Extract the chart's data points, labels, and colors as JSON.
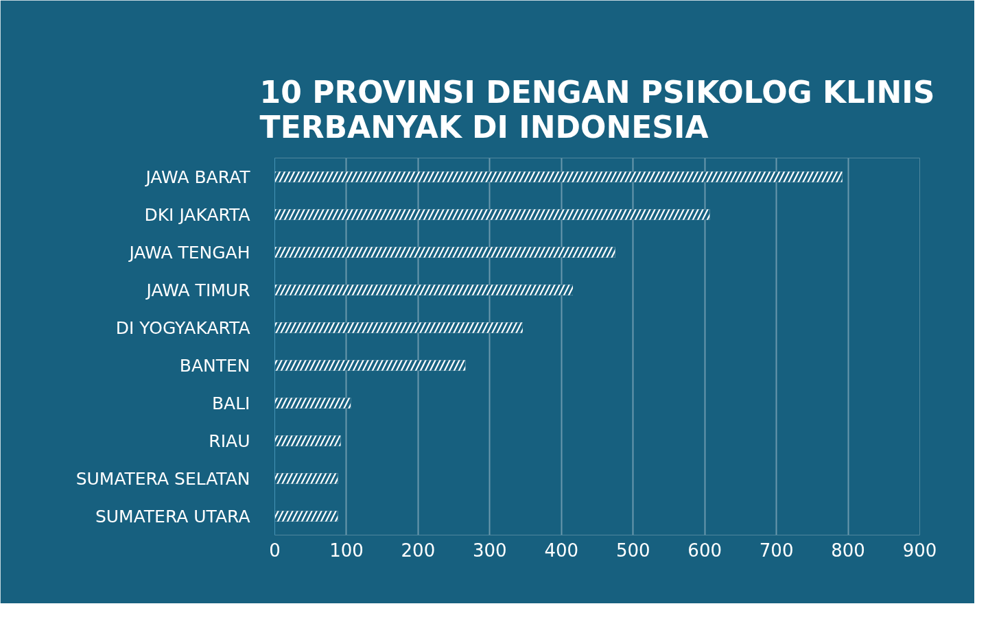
{
  "chart_data": {
    "type": "bar",
    "orientation": "horizontal",
    "title": "10 PROVINSI DENGAN PSIKOLOG KLINIS\nTERBANYAK DI INDONESIA",
    "categories": [
      "JAWA BARAT",
      "DKI JAKARTA",
      "JAWA TENGAH",
      "JAWA TIMUR",
      "DI YOGYAKARTA",
      "BANTEN",
      "BALI",
      "RIAU",
      "SUMATERA SELATAN",
      "SUMATERA UTARA"
    ],
    "values": [
      792,
      607,
      475,
      416,
      346,
      266,
      106,
      92,
      88,
      88
    ],
    "color": "#ffffff",
    "xlim": [
      0,
      900
    ],
    "xticks": [
      0,
      100,
      200,
      300,
      400,
      500,
      600,
      700,
      800,
      900
    ],
    "grid": "x"
  }
}
